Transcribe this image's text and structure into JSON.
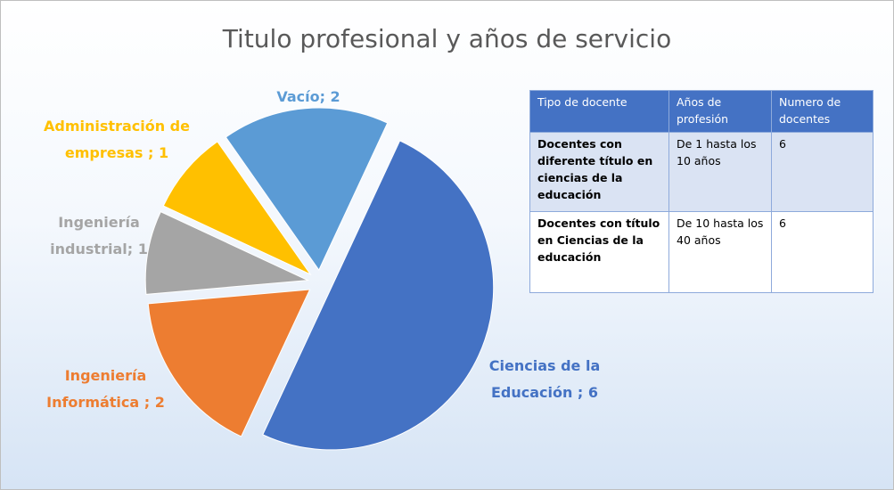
{
  "chart_data": {
    "type": "pie",
    "title": "Titulo profesional y años de servicio",
    "categories": [
      "Ciencias de la Educación",
      "Ingeniería Informática",
      "Ingeniería industrial",
      "Administración de empresas",
      "Vacío"
    ],
    "values": [
      6,
      2,
      1,
      1,
      2
    ],
    "value_labels": [
      " ; 6",
      " ; 2",
      "; 1",
      " ; 1",
      "; 2"
    ],
    "colors": [
      "#4472c4",
      "#ed7d31",
      "#a5a5a5",
      "#ffc000",
      "#5b9bd5"
    ],
    "exploded": true
  },
  "table": {
    "header": [
      "Tipo de docente",
      "Años de profesión",
      "Numero de docentes"
    ],
    "rows": [
      [
        "Docentes con diferente título en ciencias de la educación",
        "De 1 hasta los 10 años",
        "6"
      ],
      [
        "Docentes con título en Ciencias de la educación",
        "De 10 hasta los 40 años",
        "6"
      ]
    ]
  }
}
